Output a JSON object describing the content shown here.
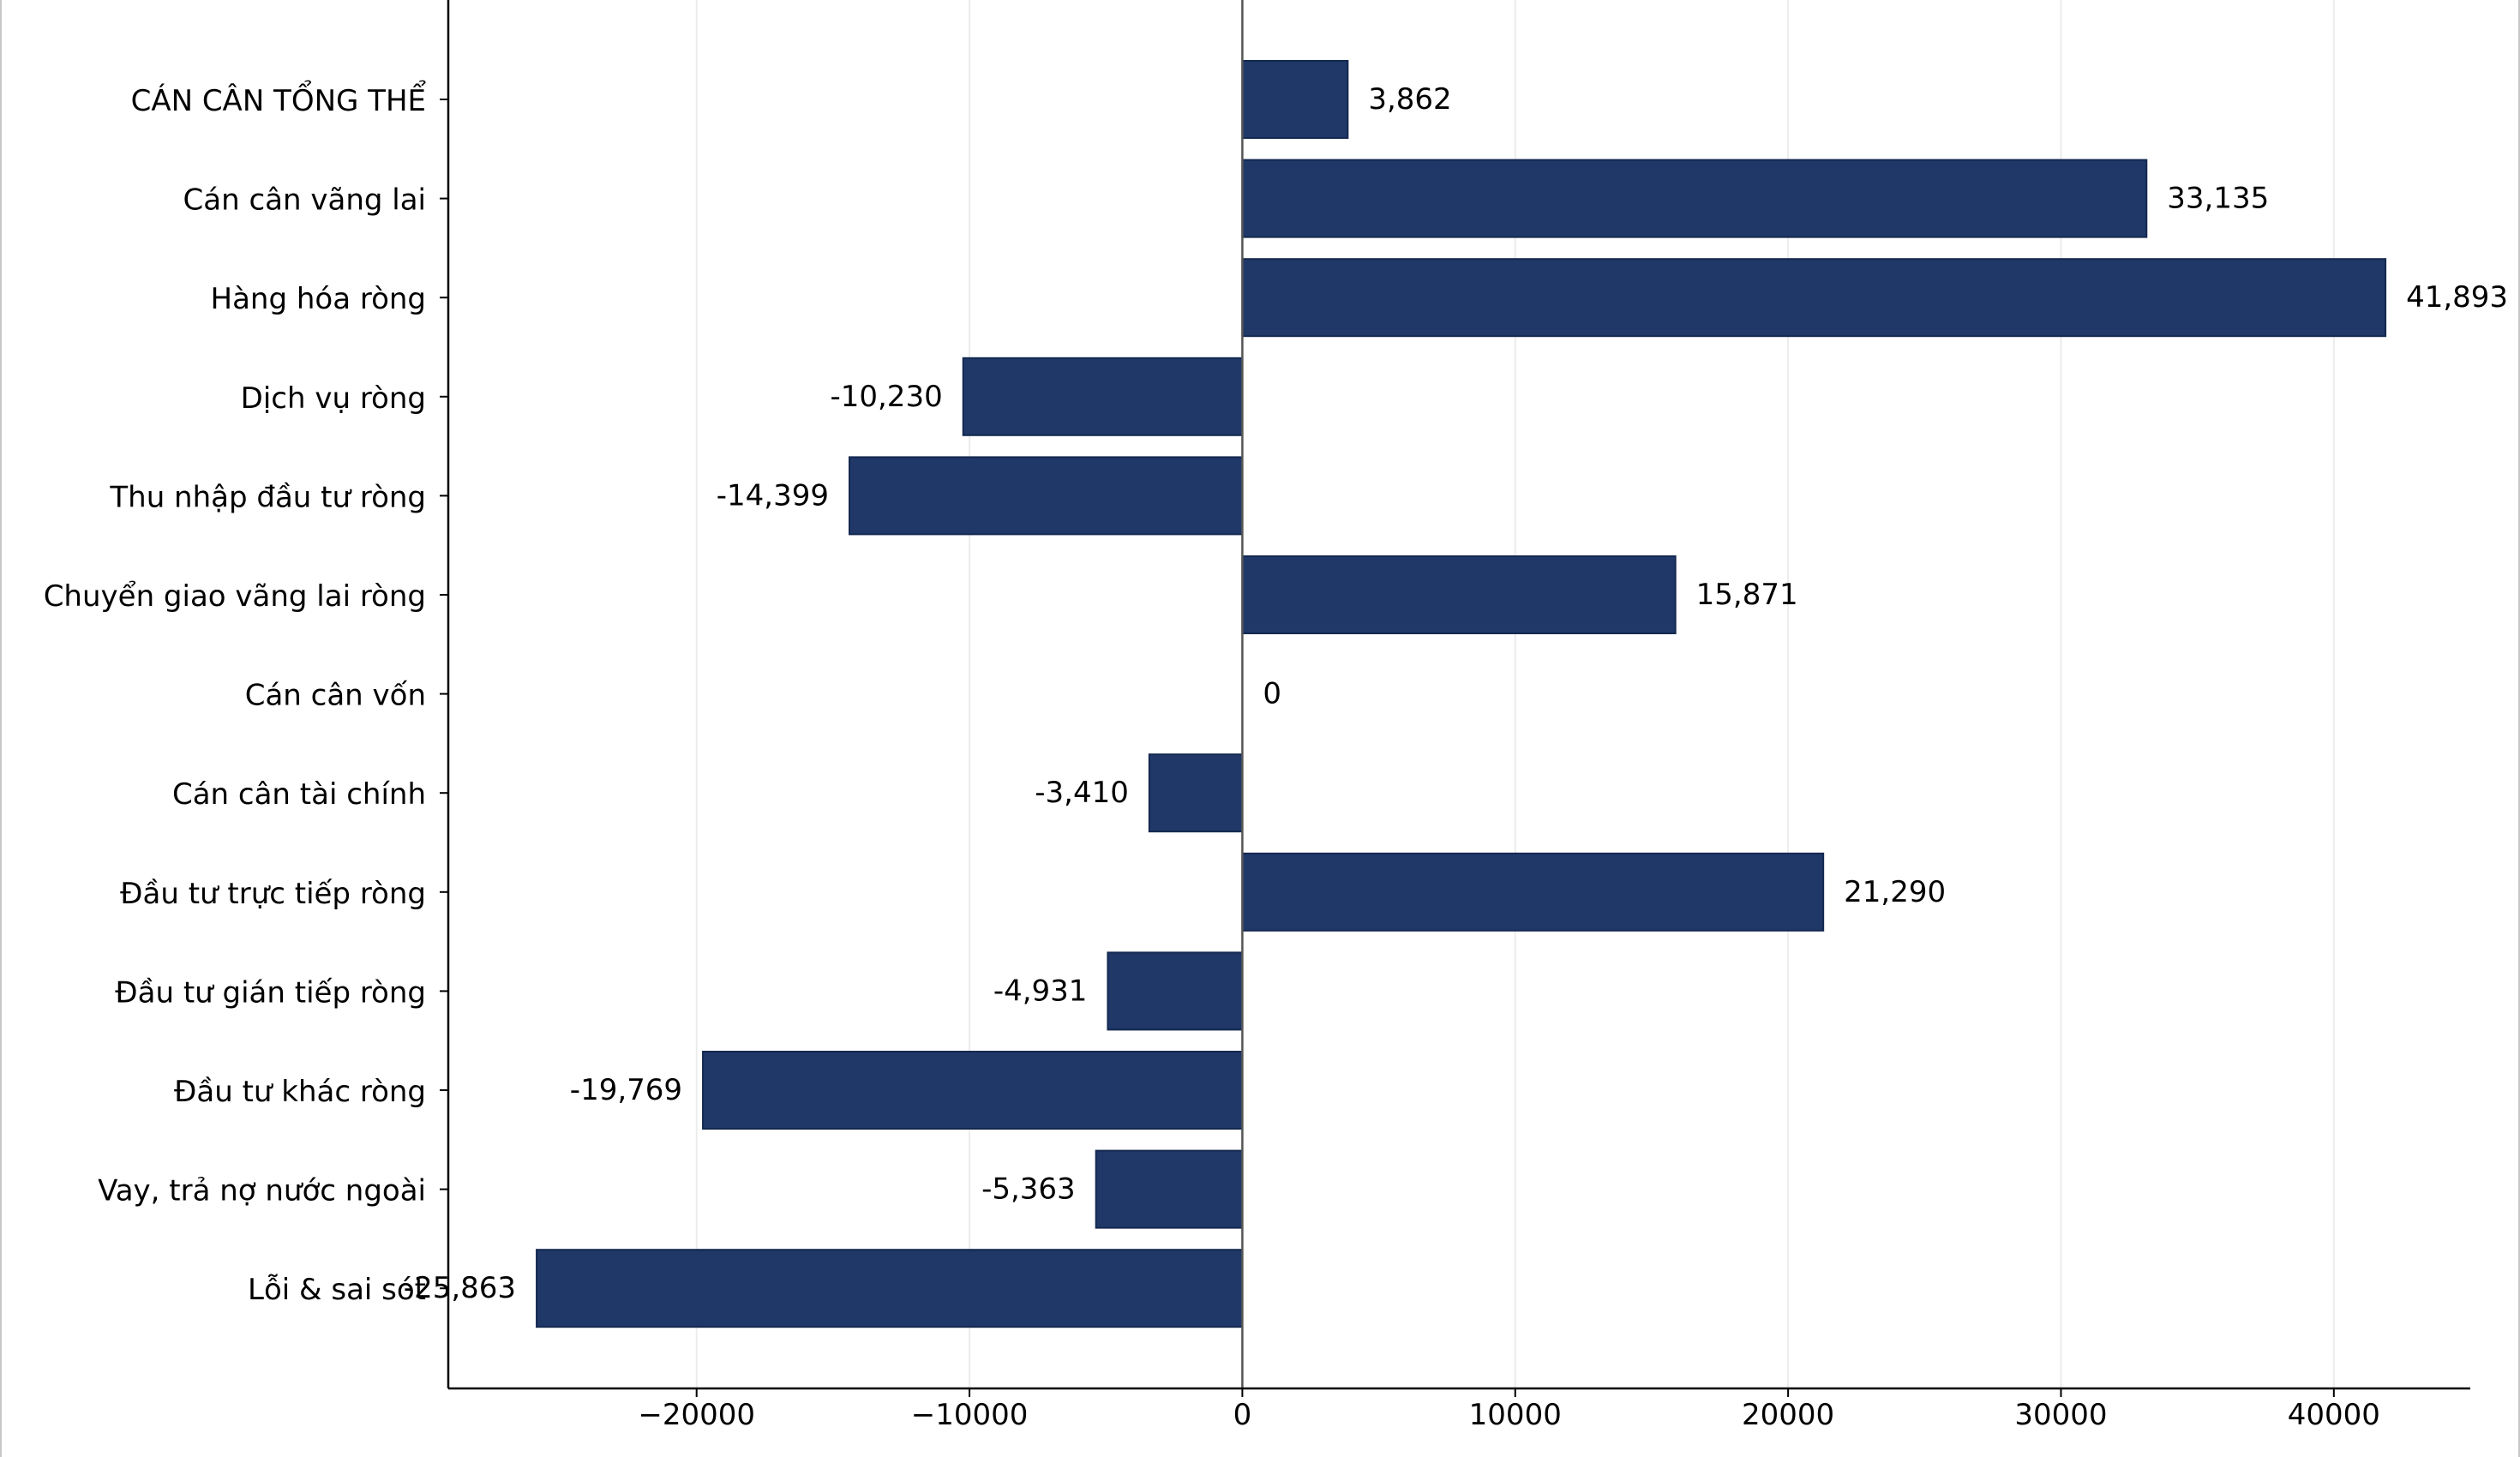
{
  "chart_data": {
    "type": "bar",
    "orientation": "horizontal",
    "title": "",
    "xlabel": "",
    "ylabel": "",
    "categories": [
      "CÁN CÂN TỔNG THỂ",
      "Cán cân vãng lai",
      "Hàng hóa ròng",
      "Dịch vụ ròng",
      "Thu nhập đầu tư ròng",
      "Chuyển giao vãng lai ròng",
      "Cán cân vốn",
      "Cán cân tài chính",
      "Đầu tư trực tiếp ròng",
      "Đầu tư gián tiếp ròng",
      "Đầu tư khác ròng",
      "Vay, trả nợ nước ngoài",
      "Lỗi & sai sót"
    ],
    "values": [
      3862,
      33135,
      41893,
      -10230,
      -14399,
      15871,
      0,
      -3410,
      21290,
      -4931,
      -19769,
      -5363,
      -25863
    ],
    "value_labels": [
      "3,862",
      "33,135",
      "41,893",
      "-10,230",
      "-14,399",
      "15,871",
      "0",
      "-3,410",
      "21,290",
      "-4,931",
      "-19,769",
      "-5,363",
      "-25,863"
    ],
    "xlim": [
      -29100,
      45000
    ],
    "xticks": [
      -20000,
      -10000,
      0,
      10000,
      20000,
      30000,
      40000
    ],
    "xtick_labels": [
      "−20000",
      "−10000",
      "0",
      "10000",
      "20000",
      "30000",
      "40000"
    ],
    "grid": "vertical",
    "bar_color": "#1f3868",
    "grid_color": "#ececec",
    "axis_color": "#000000"
  }
}
